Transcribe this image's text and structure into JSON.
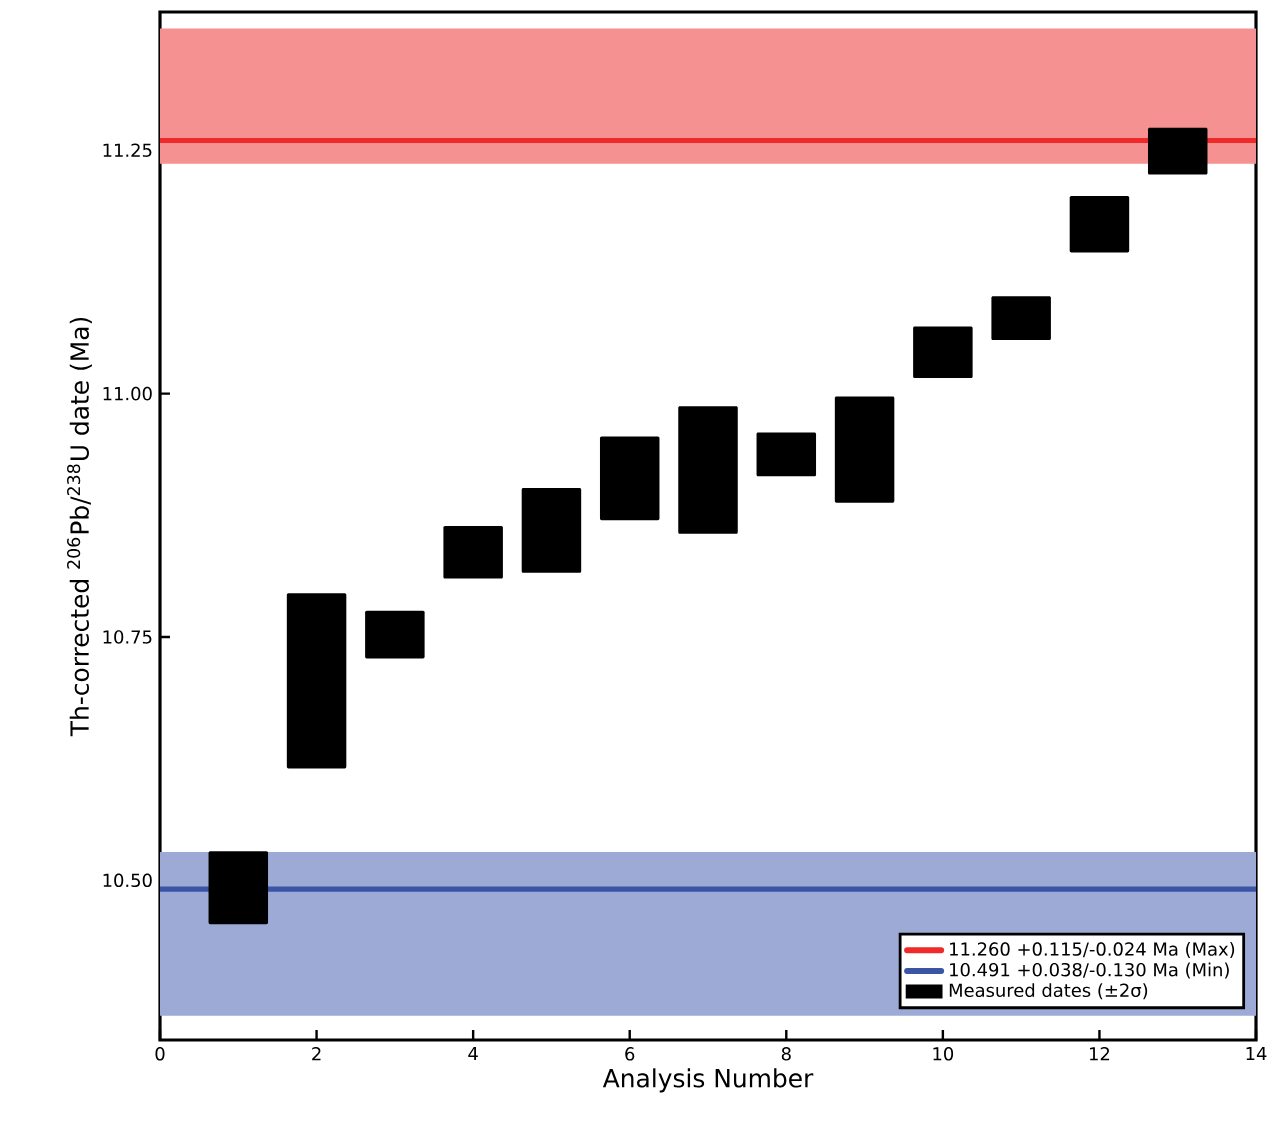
{
  "chart_data": {
    "type": "bar",
    "xlabel": "Analysis Number",
    "ylabel": "Th-corrected $^{206}$Pb/$^{238}$U date (Ma)",
    "x": [
      1,
      2,
      3,
      4,
      5,
      6,
      7,
      8,
      9,
      10,
      11,
      12,
      13
    ],
    "series": [
      {
        "name": "Measured dates (±2σ)",
        "color": "#000000",
        "values": [
          0.075,
          0.18,
          0.049,
          0.054,
          0.087,
          0.086,
          0.131,
          0.045,
          0.109,
          0.053,
          0.045,
          0.058,
          0.048
        ],
        "base": [
          10.455,
          10.615,
          10.728,
          10.81,
          10.816,
          10.87,
          10.856,
          10.915,
          10.888,
          11.016,
          11.055,
          11.145,
          11.225
        ]
      }
    ],
    "xlim": [
      0,
      14
    ],
    "ylim": [
      10.336,
      11.392
    ],
    "xticks": [
      0,
      2,
      4,
      6,
      8,
      10,
      12,
      14
    ],
    "yticks": [
      {
        "value": 10.5,
        "label": "10.50"
      },
      {
        "value": 10.75,
        "label": "10.75"
      },
      {
        "value": 11.0,
        "label": "11.00"
      },
      {
        "value": 11.25,
        "label": "11.25"
      }
    ],
    "ref_lines": [
      {
        "axis": "y",
        "value": 11.26,
        "label": "11.260 +0.115/-0.024 Ma (Max)",
        "color": "#ee2a2a"
      },
      {
        "axis": "y",
        "value": 10.491,
        "label": "10.491 +0.038/-0.130 Ma (Min)",
        "color": "#3a55a4"
      }
    ],
    "bands": [
      {
        "axis": "y",
        "from": 11.236,
        "to": 11.375,
        "color": "#f59191"
      },
      {
        "axis": "y",
        "from": 10.361,
        "to": 10.529,
        "color": "#9daad5"
      }
    ],
    "legend": "bottom right",
    "grid": false
  }
}
